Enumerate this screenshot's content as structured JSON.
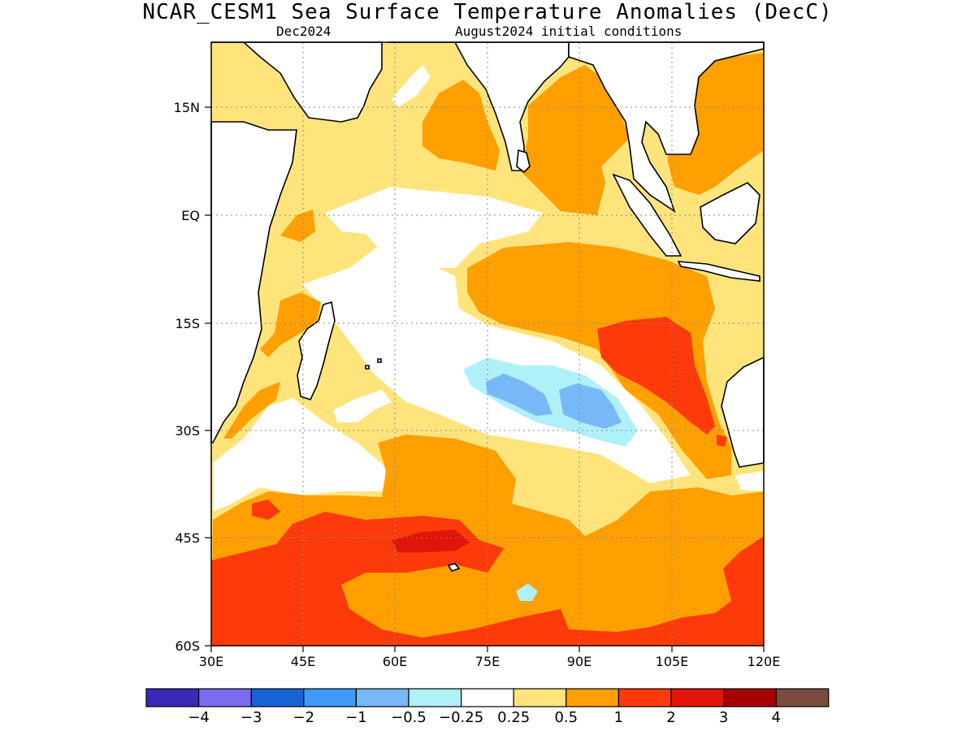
{
  "header": {
    "title": "NCAR_CESM1 Sea Surface Temperature Anomalies (DecC)",
    "valid_month": "Dec2024",
    "init_conditions": "August2024 initial conditions"
  },
  "map": {
    "lon_ticks": [
      "30E",
      "45E",
      "60E",
      "75E",
      "90E",
      "105E",
      "120E"
    ],
    "lat_ticks": [
      "15N",
      "EQ",
      "15S",
      "30S",
      "45S",
      "60S"
    ],
    "extent": {
      "lon": [
        30,
        120
      ],
      "lat": [
        -60,
        24
      ]
    }
  },
  "colorbar": {
    "colors": [
      "#3a28b8",
      "#7c6cf0",
      "#1763d6",
      "#3d9bf5",
      "#78b8f8",
      "#b0f0f8",
      "#ffffff",
      "#ffe47c",
      "#ff9f00",
      "#ff3a0a",
      "#e01408",
      "#a80000",
      "#7a4a3e"
    ],
    "labels": [
      "−4",
      "−3",
      "−2",
      "−1",
      "−0.5",
      "−0.25",
      "0.25",
      "0.5",
      "1",
      "2",
      "3",
      "4"
    ]
  },
  "fill_colors": {
    "white": "#ffffff",
    "yellow": "#ffe47c",
    "orange": "#ff9f00",
    "red": "#ff3a0a",
    "darkred": "#e01408",
    "lightblue": "#b0f0f8",
    "blue": "#78b8f8"
  }
}
